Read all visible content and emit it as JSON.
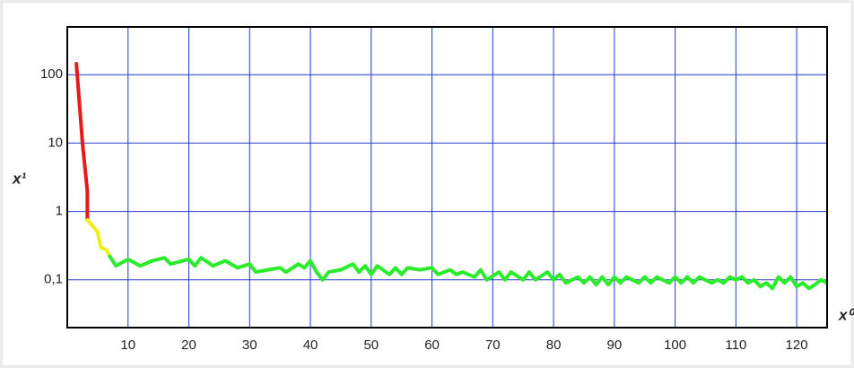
{
  "chart_data": {
    "type": "line",
    "y_label": "x¹",
    "x_label": "x⁰",
    "log_y": true,
    "grid": true,
    "grid_color": "#2437c8",
    "xlim": [
      0,
      125
    ],
    "ylim": [
      0.02,
      500
    ],
    "xticks": [
      10,
      20,
      30,
      40,
      50,
      60,
      70,
      80,
      90,
      100,
      110,
      120
    ],
    "yticks": [
      {
        "value": 0.1,
        "label": "0,1"
      },
      1,
      10,
      100
    ],
    "series": [
      {
        "color": "#e41b1b",
        "x": [
          1.5,
          2.5,
          3.3,
          3.3
        ],
        "values": [
          145,
          10,
          2,
          0.75
        ]
      },
      {
        "color": "#f2ec17",
        "x": [
          3.3,
          5,
          5.5,
          6.5,
          7
        ],
        "values": [
          0.75,
          0.5,
          0.3,
          0.27,
          0.22
        ]
      },
      {
        "color": "#2bec2b",
        "x": [
          7,
          8,
          10,
          12,
          14,
          16,
          17,
          19,
          20,
          21,
          22,
          24,
          26,
          28,
          30,
          31,
          33,
          35,
          36,
          38,
          39,
          40,
          41,
          42,
          43,
          45,
          47,
          48,
          49,
          50,
          51,
          53,
          54,
          55,
          56,
          58,
          60,
          61,
          63,
          64,
          65,
          67,
          68,
          69,
          71,
          72,
          73,
          75,
          76,
          77,
          79,
          80,
          81,
          82,
          84,
          85,
          86,
          87,
          88,
          89,
          90,
          91,
          92,
          94,
          95,
          96,
          97,
          99,
          100,
          101,
          102,
          103,
          104,
          106,
          107,
          108,
          109,
          110,
          111,
          112,
          113,
          114,
          115,
          116,
          117,
          118,
          119,
          120,
          121,
          122,
          123,
          124,
          125
        ],
        "values": [
          0.22,
          0.16,
          0.2,
          0.16,
          0.19,
          0.21,
          0.17,
          0.19,
          0.2,
          0.16,
          0.21,
          0.16,
          0.19,
          0.15,
          0.17,
          0.13,
          0.14,
          0.15,
          0.13,
          0.17,
          0.15,
          0.19,
          0.13,
          0.1,
          0.13,
          0.14,
          0.17,
          0.13,
          0.16,
          0.12,
          0.16,
          0.12,
          0.15,
          0.12,
          0.15,
          0.14,
          0.15,
          0.12,
          0.14,
          0.12,
          0.13,
          0.11,
          0.14,
          0.1,
          0.13,
          0.1,
          0.13,
          0.1,
          0.13,
          0.1,
          0.13,
          0.1,
          0.12,
          0.09,
          0.11,
          0.09,
          0.11,
          0.085,
          0.11,
          0.085,
          0.11,
          0.09,
          0.11,
          0.09,
          0.11,
          0.09,
          0.11,
          0.09,
          0.11,
          0.09,
          0.11,
          0.09,
          0.11,
          0.09,
          0.1,
          0.09,
          0.11,
          0.1,
          0.11,
          0.09,
          0.1,
          0.08,
          0.09,
          0.075,
          0.11,
          0.09,
          0.11,
          0.08,
          0.09,
          0.075,
          0.085,
          0.1,
          0.09
        ]
      }
    ]
  }
}
